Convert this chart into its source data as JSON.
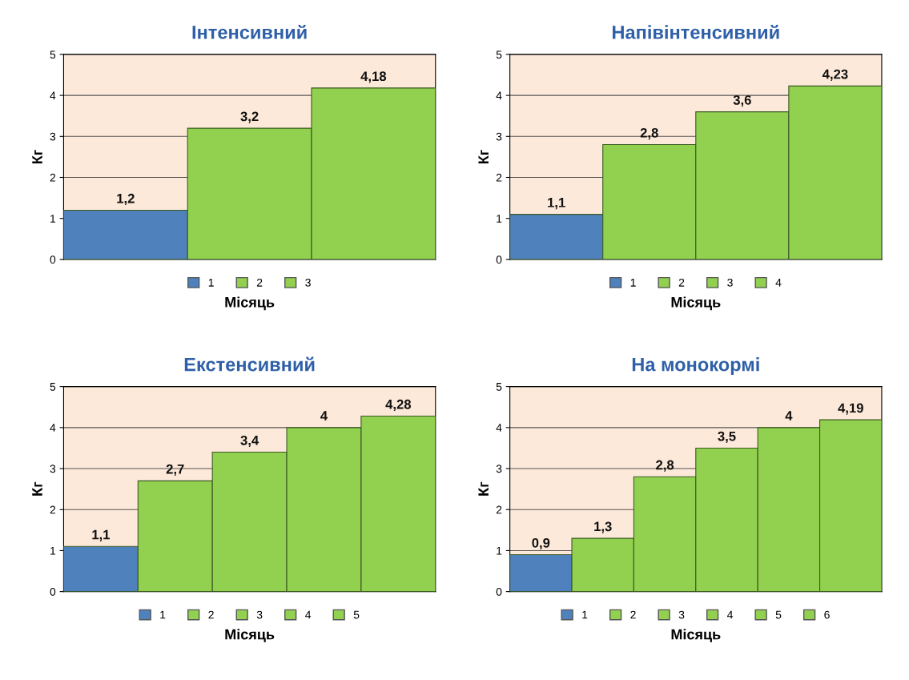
{
  "chart_data": [
    {
      "type": "bar",
      "title": "Інтенсивний",
      "xlabel": "Місяць",
      "ylabel": "Кг",
      "categories": [
        null
      ],
      "ylim": [
        0,
        5
      ],
      "yticks": [
        0,
        1,
        2,
        3,
        4,
        5
      ],
      "grid": "y",
      "legend": "bottom",
      "bands": [
        {
          "axis": "y",
          "from": 0,
          "to": 5,
          "color": "#fde9d9"
        }
      ],
      "series": [
        {
          "name": "1",
          "color": "#4f81bd",
          "values": [
            1.2
          ],
          "value_labels": [
            "1,2"
          ]
        },
        {
          "name": "2",
          "color": "#92d050",
          "values": [
            3.2
          ],
          "value_labels": [
            "3,2"
          ]
        },
        {
          "name": "3",
          "color": "#92d050",
          "values": [
            4.18
          ],
          "value_labels": [
            "4,18"
          ]
        }
      ]
    },
    {
      "type": "bar",
      "title": "Напівінтенсивний",
      "xlabel": "Місяць",
      "ylabel": "Кг",
      "categories": [
        null
      ],
      "ylim": [
        0,
        5
      ],
      "yticks": [
        0,
        1,
        2,
        3,
        4,
        5
      ],
      "grid": "y",
      "legend": "bottom",
      "bands": [
        {
          "axis": "y",
          "from": 0,
          "to": 5,
          "color": "#fde9d9"
        }
      ],
      "series": [
        {
          "name": "1",
          "color": "#4f81bd",
          "values": [
            1.1
          ],
          "value_labels": [
            "1,1"
          ]
        },
        {
          "name": "2",
          "color": "#92d050",
          "values": [
            2.8
          ],
          "value_labels": [
            "2,8"
          ]
        },
        {
          "name": "3",
          "color": "#92d050",
          "values": [
            3.6
          ],
          "value_labels": [
            "3,6"
          ]
        },
        {
          "name": "4",
          "color": "#92d050",
          "values": [
            4.23
          ],
          "value_labels": [
            "4,23"
          ]
        }
      ]
    },
    {
      "type": "bar",
      "title": "Екстенсивний",
      "xlabel": "Місяць",
      "ylabel": "Кг",
      "categories": [
        null
      ],
      "ylim": [
        0,
        5
      ],
      "yticks": [
        0,
        1,
        2,
        3,
        4,
        5
      ],
      "grid": "y",
      "legend": "bottom",
      "bands": [
        {
          "axis": "y",
          "from": 0,
          "to": 5,
          "color": "#fde9d9"
        }
      ],
      "series": [
        {
          "name": "1",
          "color": "#4f81bd",
          "values": [
            1.1
          ],
          "value_labels": [
            "1,1"
          ]
        },
        {
          "name": "2",
          "color": "#92d050",
          "values": [
            2.7
          ],
          "value_labels": [
            "2,7"
          ]
        },
        {
          "name": "3",
          "color": "#92d050",
          "values": [
            3.4
          ],
          "value_labels": [
            "3,4"
          ]
        },
        {
          "name": "4",
          "color": "#92d050",
          "values": [
            4
          ],
          "value_labels": [
            "4"
          ]
        },
        {
          "name": "5",
          "color": "#92d050",
          "values": [
            4.28
          ],
          "value_labels": [
            "4,28"
          ]
        }
      ]
    },
    {
      "type": "bar",
      "title": "На монокормі",
      "xlabel": "Місяць",
      "ylabel": "Кг",
      "categories": [
        null
      ],
      "ylim": [
        0,
        5
      ],
      "yticks": [
        0,
        1,
        2,
        3,
        4,
        5
      ],
      "grid": "y",
      "legend": "bottom",
      "bands": [
        {
          "axis": "y",
          "from": 0,
          "to": 5,
          "color": "#fde9d9"
        }
      ],
      "series": [
        {
          "name": "1",
          "color": "#4f81bd",
          "values": [
            0.9
          ],
          "value_labels": [
            "0,9"
          ]
        },
        {
          "name": "2",
          "color": "#92d050",
          "values": [
            1.3
          ],
          "value_labels": [
            "1,3"
          ]
        },
        {
          "name": "3",
          "color": "#92d050",
          "values": [
            2.8
          ],
          "value_labels": [
            "2,8"
          ]
        },
        {
          "name": "4",
          "color": "#92d050",
          "values": [
            3.5
          ],
          "value_labels": [
            "3,5"
          ]
        },
        {
          "name": "5",
          "color": "#92d050",
          "values": [
            4
          ],
          "value_labels": [
            "4"
          ]
        },
        {
          "name": "6",
          "color": "#92d050",
          "values": [
            4.19
          ],
          "value_labels": [
            "4,19"
          ]
        }
      ]
    }
  ]
}
